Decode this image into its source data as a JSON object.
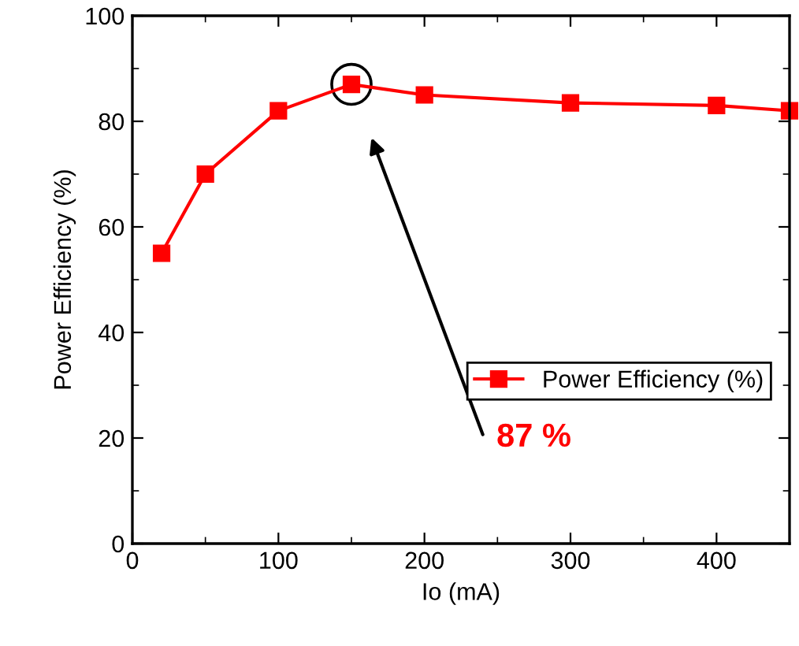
{
  "chart_data": {
    "type": "line",
    "xlabel": "Io (mA)",
    "ylabel": "Power Efficiency (%)",
    "x": [
      20,
      50,
      100,
      150,
      200,
      300,
      400,
      450
    ],
    "series": [
      {
        "name": "Power Efficiency (%)",
        "color": "#ff0000",
        "values": [
          55,
          70,
          82,
          87,
          85,
          83.5,
          83,
          82
        ]
      }
    ],
    "annotations": [
      "87 %"
    ],
    "xlim": [
      0,
      450
    ],
    "xticks": [
      0,
      100,
      200,
      300,
      400
    ],
    "ylim": [
      0,
      100
    ],
    "yticks": [
      0,
      20,
      40,
      60,
      80,
      100
    ],
    "grid": false,
    "legend": "bottom right",
    "marker": "square",
    "line_style": "solid"
  }
}
